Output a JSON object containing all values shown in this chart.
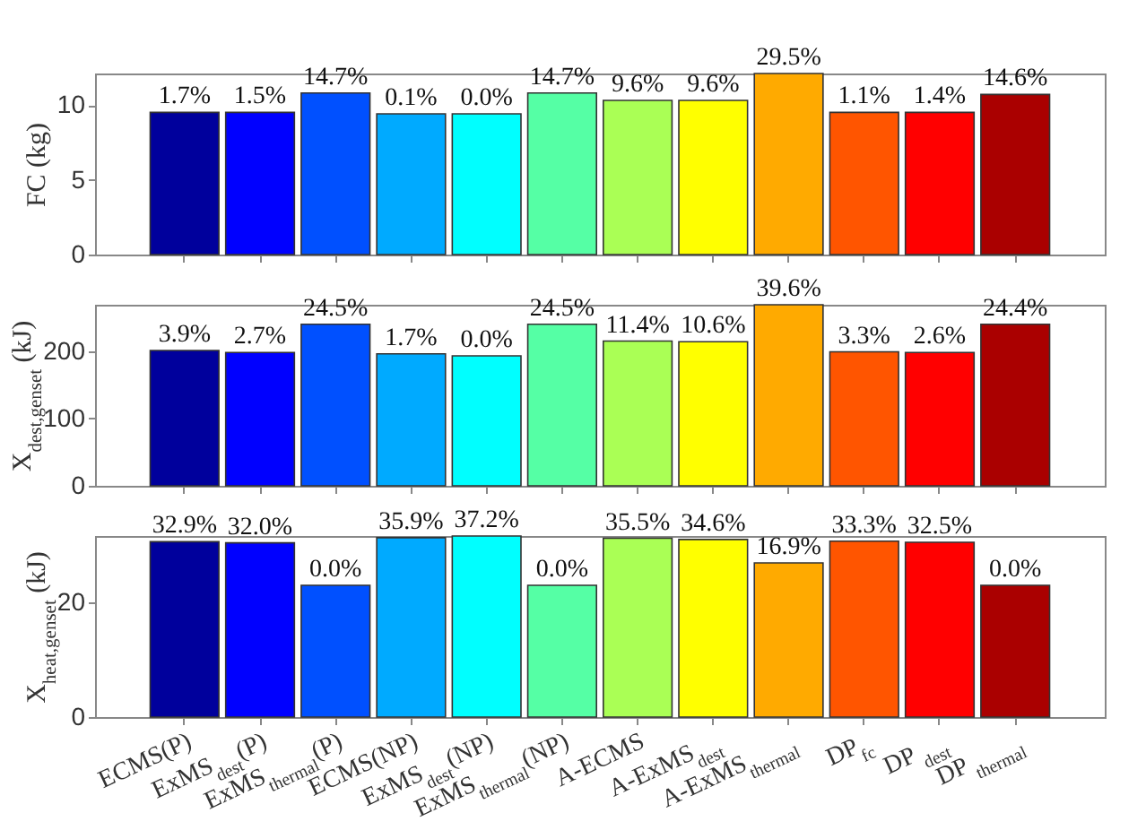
{
  "chart_data": [
    {
      "type": "bar",
      "ylabel": "FC (kg)",
      "categories": [
        "ECMS(P)",
        "ExMS$_{dest}$(P)",
        "ExMS$_{thermal}$(P)",
        "ECMS(NP)",
        "ExMS$_{dest}$(NP)",
        "ExMS$_{thermal}$(NP)",
        "A-ECMS",
        "A-ExMS$_{dest}$",
        "A-ExMS$_{thermal}$",
        "DP$_{fc}$",
        "DP $_{dest}$",
        "DP $_{thermal}$"
      ],
      "values": [
        9.5,
        9.5,
        10.8,
        9.4,
        9.4,
        10.8,
        10.3,
        10.3,
        12.1,
        9.5,
        9.5,
        10.7
      ],
      "colors": [
        "#00009c",
        "#0000ff",
        "#0050ff",
        "#00aaff",
        "#00ffff",
        "#55ffa5",
        "#aaff55",
        "#ffff00",
        "#ffaa00",
        "#ff5500",
        "#ff0000",
        "#aa0000"
      ],
      "annotations": [
        {
          "text": "1.7%",
          "x": "ECMS(P)",
          "y": 9.5
        },
        {
          "text": "1.5%",
          "x": "ExMS$_{dest}$(P)",
          "y": 9.5
        },
        {
          "text": "14.7%",
          "x": "ExMS$_{thermal}$(P)",
          "y": 10.8
        },
        {
          "text": "0.1%",
          "x": "ECMS(NP)",
          "y": 9.4
        },
        {
          "text": "0.0%",
          "x": "ExMS$_{dest}$(NP)",
          "y": 9.4
        },
        {
          "text": "14.7%",
          "x": "ExMS$_{thermal}$(NP)",
          "y": 10.8
        },
        {
          "text": "9.6%",
          "x": "A-ECMS",
          "y": 10.3
        },
        {
          "text": "9.6%",
          "x": "A-ExMS$_{dest}$",
          "y": 10.3
        },
        {
          "text": "29.5%",
          "x": "A-ExMS$_{thermal}$",
          "y": 12.1
        },
        {
          "text": "1.1%",
          "x": "DP$_{fc}$",
          "y": 9.5
        },
        {
          "text": "1.4%",
          "x": "DP $_{dest}$",
          "y": 9.5
        },
        {
          "text": "14.6%",
          "x": "DP $_{thermal}$",
          "y": 10.7
        }
      ],
      "ylim": [
        0,
        12.1
      ],
      "yticks": [
        0,
        5,
        10
      ],
      "tick_labels": "y"
    },
    {
      "type": "bar",
      "ylabel": "X$_{dest,genset}$ (kJ)",
      "categories": [
        "ECMS(P)",
        "ExMS$_{dest}$(P)",
        "ExMS$_{thermal}$(P)",
        "ECMS(NP)",
        "ExMS$_{dest}$(NP)",
        "ExMS$_{thermal}$(NP)",
        "A-ECMS",
        "A-ExMS$_{dest}$",
        "A-ExMS$_{thermal}$",
        "DP$_{fc}$",
        "DP $_{dest}$",
        "DP $_{thermal}$"
      ],
      "values": [
        201,
        198,
        240,
        196,
        193,
        240,
        215,
        214,
        269,
        199,
        198,
        240
      ],
      "colors": [
        "#00009c",
        "#0000ff",
        "#0050ff",
        "#00aaff",
        "#00ffff",
        "#55ffa5",
        "#aaff55",
        "#ffff00",
        "#ffaa00",
        "#ff5500",
        "#ff0000",
        "#aa0000"
      ],
      "annotations": [
        {
          "text": "3.9%",
          "x": "ECMS(P)",
          "y": 201
        },
        {
          "text": "2.7%",
          "x": "ExMS$_{dest}$(P)",
          "y": 198
        },
        {
          "text": "24.5%",
          "x": "ExMS$_{thermal}$(P)",
          "y": 240
        },
        {
          "text": "1.7%",
          "x": "ECMS(NP)",
          "y": 196
        },
        {
          "text": "0.0%",
          "x": "ExMS$_{dest}$(NP)",
          "y": 193
        },
        {
          "text": "24.5%",
          "x": "ExMS$_{thermal}$(NP)",
          "y": 240
        },
        {
          "text": "11.4%",
          "x": "A-ECMS",
          "y": 215
        },
        {
          "text": "10.6%",
          "x": "A-ExMS$_{dest}$",
          "y": 214
        },
        {
          "text": "39.6%",
          "x": "A-ExMS$_{thermal}$",
          "y": 269
        },
        {
          "text": "3.3%",
          "x": "DP$_{fc}$",
          "y": 199
        },
        {
          "text": "2.6%",
          "x": "DP $_{dest}$",
          "y": 198
        },
        {
          "text": "24.4%",
          "x": "DP $_{thermal}$",
          "y": 240
        }
      ],
      "ylim": [
        0,
        269
      ],
      "yticks": [
        0,
        100,
        200
      ],
      "tick_labels": "y"
    },
    {
      "type": "bar",
      "ylabel": "X$_{heat,genset}$ (kJ)",
      "categories": [
        "ECMS(P)",
        "ExMS$_{dest}$(P)",
        "ExMS$_{thermal}$(P)",
        "ECMS(NP)",
        "ExMS$_{dest}$(NP)",
        "ExMS$_{thermal}$(NP)",
        "A-ECMS",
        "A-ExMS$_{dest}$",
        "A-ExMS$_{thermal}$",
        "DP$_{fc}$",
        "DP $_{dest}$",
        "DP $_{thermal}$"
      ],
      "values": [
        30.6,
        30.4,
        23.0,
        31.3,
        31.6,
        23.0,
        31.2,
        31.0,
        26.9,
        30.7,
        30.5,
        23.0
      ],
      "colors": [
        "#00009c",
        "#0000ff",
        "#0050ff",
        "#00aaff",
        "#00ffff",
        "#55ffa5",
        "#aaff55",
        "#ffff00",
        "#ffaa00",
        "#ff5500",
        "#ff0000",
        "#aa0000"
      ],
      "annotations": [
        {
          "text": "32.9%",
          "x": "ECMS(P)",
          "y": 30.6
        },
        {
          "text": "32.0%",
          "x": "ExMS$_{dest}$(P)",
          "y": 30.4
        },
        {
          "text": "0.0%",
          "x": "ExMS$_{thermal}$(P)",
          "y": 23.0
        },
        {
          "text": "35.9%",
          "x": "ECMS(NP)",
          "y": 31.3
        },
        {
          "text": "37.2%",
          "x": "ExMS$_{dest}$(NP)",
          "y": 31.6
        },
        {
          "text": "0.0%",
          "x": "ExMS$_{thermal}$(NP)",
          "y": 23.0
        },
        {
          "text": "35.5%",
          "x": "A-ECMS",
          "y": 31.2
        },
        {
          "text": "34.6%",
          "x": "A-ExMS$_{dest}$",
          "y": 31.0
        },
        {
          "text": "16.9%",
          "x": "A-ExMS$_{thermal}$",
          "y": 26.9
        },
        {
          "text": "33.3%",
          "x": "DP$_{fc}$",
          "y": 30.7
        },
        {
          "text": "32.5%",
          "x": "DP $_{dest}$",
          "y": 30.5
        },
        {
          "text": "0.0%",
          "x": "DP $_{thermal}$",
          "y": 23.0
        }
      ],
      "ylim": [
        0,
        31.6
      ],
      "yticks": [
        0,
        20
      ]
    }
  ]
}
